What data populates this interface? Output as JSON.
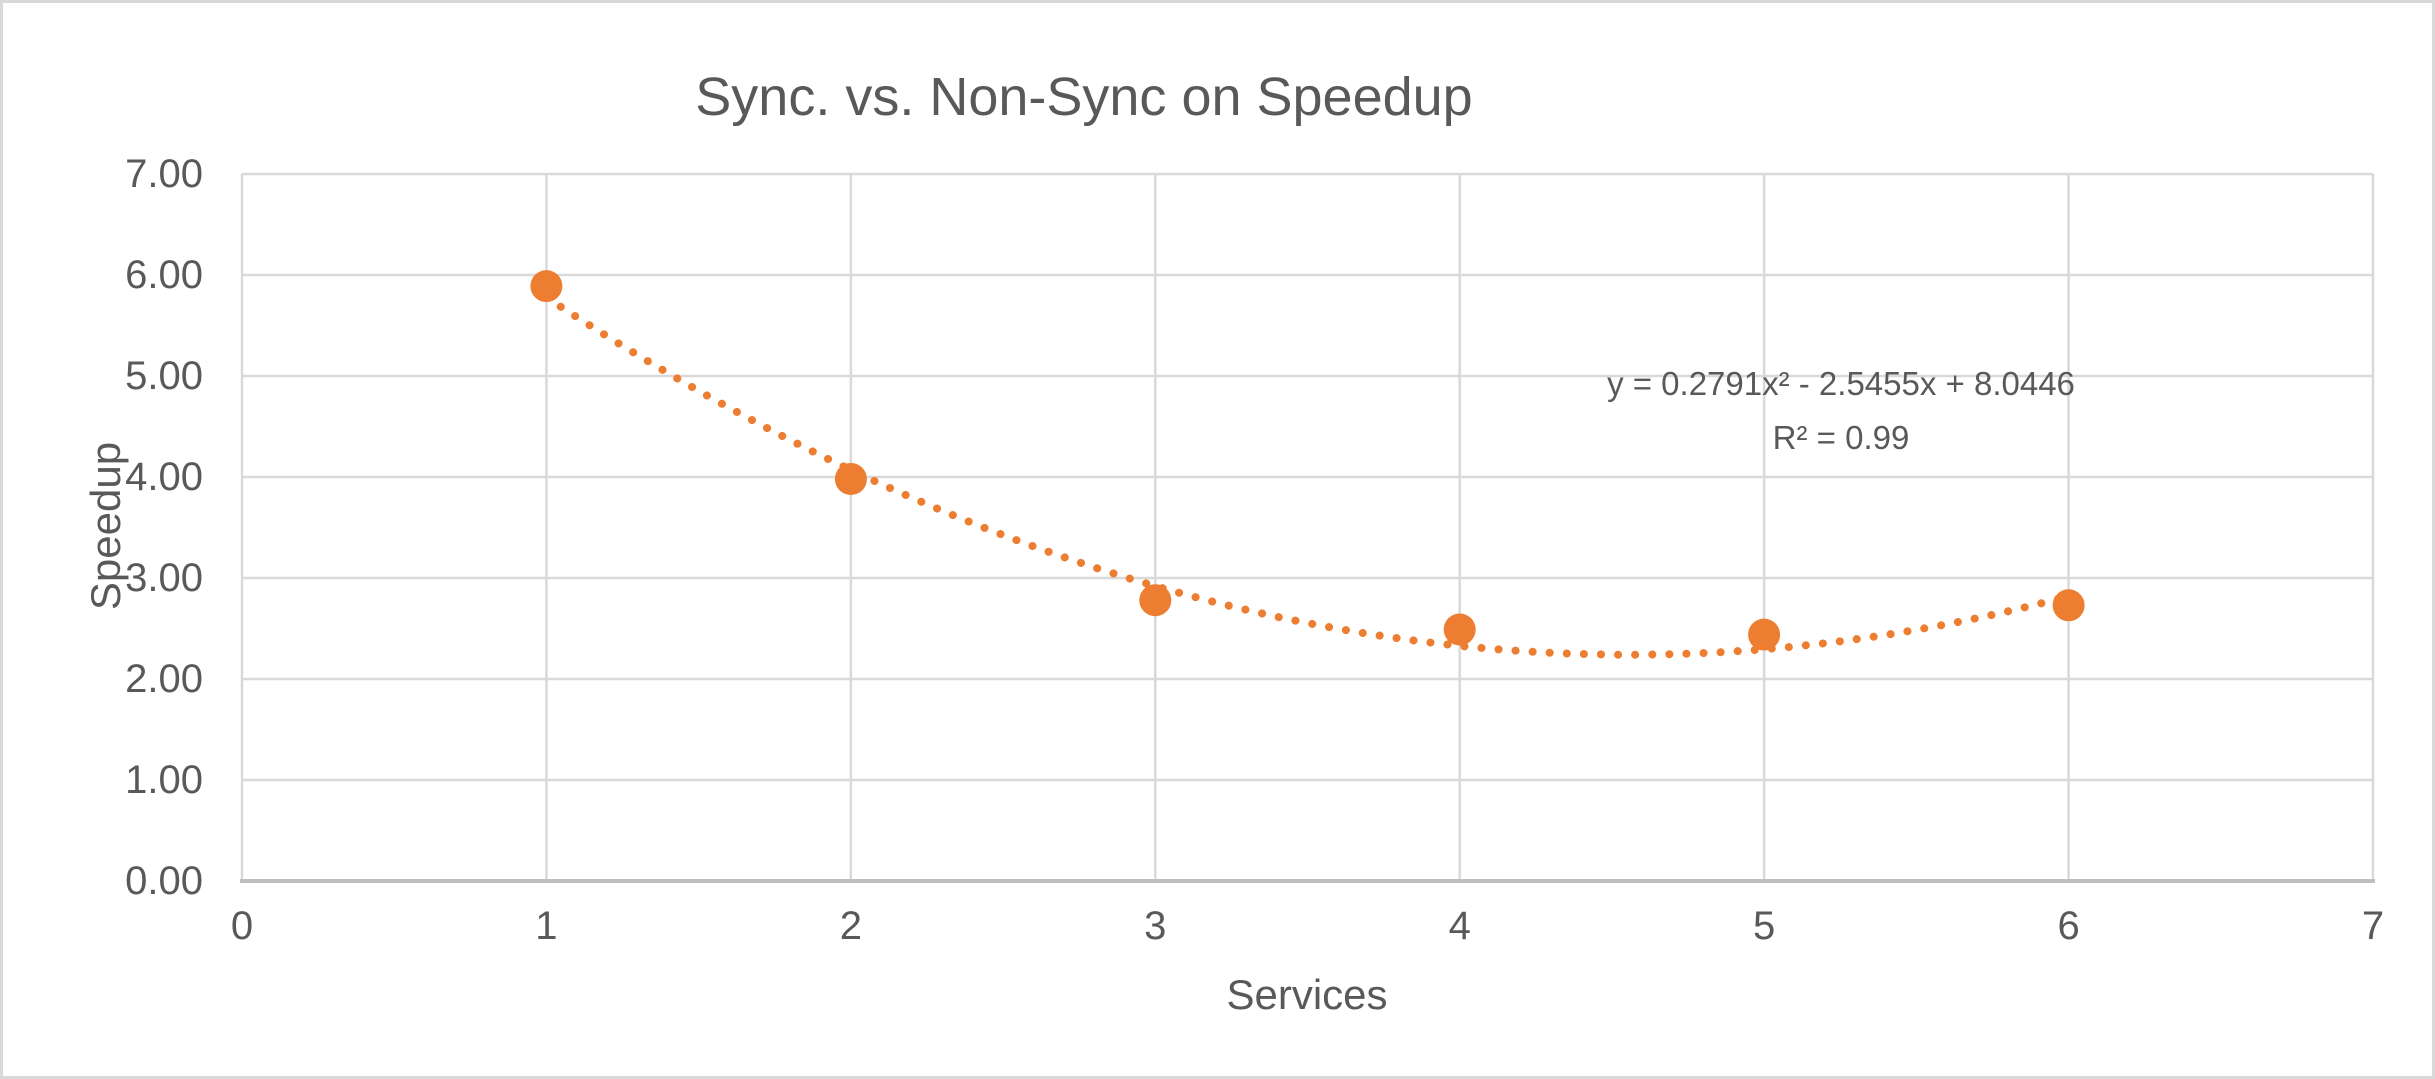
{
  "chart": {
    "title": "Sync. vs. Non-Sync on Speedup"
  },
  "chart_data": {
    "type": "scatter",
    "title": "Sync. vs. Non-Sync on Speedup",
    "xlabel": "Services",
    "ylabel": "Speedup",
    "x": [
      1,
      2,
      3,
      4,
      5,
      6
    ],
    "y": [
      5.89,
      3.98,
      2.78,
      2.49,
      2.44,
      2.73
    ],
    "xlim": [
      0,
      7
    ],
    "ylim": [
      0,
      7
    ],
    "x_ticks": [
      "0",
      "1",
      "2",
      "3",
      "4",
      "5",
      "6",
      "7"
    ],
    "y_ticks": [
      "0.00",
      "1.00",
      "2.00",
      "3.00",
      "4.00",
      "5.00",
      "6.00",
      "7.00"
    ],
    "grid": true,
    "legend": "none",
    "trendline": {
      "type": "polynomial",
      "order": 2,
      "a": 0.2791,
      "b": -2.5455,
      "c": 8.0446,
      "r_squared": 0.99,
      "x_range": [
        1,
        6
      ],
      "style": "dotted"
    },
    "annotation": {
      "equation": "y = 0.2791x² - 2.5455x + 8.0446",
      "r_squared_label": "R² = 0.99"
    },
    "colors": {
      "marker": "#ED7D31",
      "trendline": "#ED7D31",
      "gridline": "#D9D9D9",
      "axis_line": "#BFBFBF",
      "text": "#595959",
      "border": "#D9D9D9",
      "background": "#FFFFFF"
    }
  }
}
